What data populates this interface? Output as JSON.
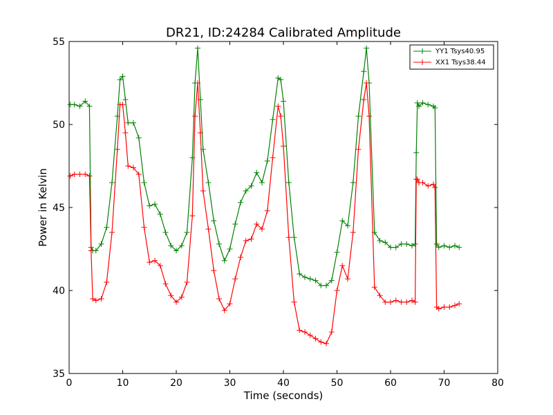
{
  "chart_data": {
    "type": "line",
    "title": "DR21, ID:24284 Calibrated Amplitude",
    "xlabel": "Time (seconds)",
    "ylabel": "Power in Kelvin",
    "xlim": [
      0,
      80
    ],
    "ylim": [
      35,
      55
    ],
    "xticks": [
      0,
      10,
      20,
      30,
      40,
      50,
      60,
      70,
      80
    ],
    "yticks": [
      35,
      40,
      45,
      50,
      55
    ],
    "grid": false,
    "legend_position": "top-right",
    "series": [
      {
        "name": "YY1 Tsys40.95",
        "color": "#008000",
        "marker": "+",
        "x": [
          0.2,
          1.0,
          2.0,
          3.0,
          3.8,
          4.1,
          4.4,
          5.0,
          6.0,
          7.0,
          8.0,
          9.0,
          9.5,
          10.0,
          10.5,
          11.0,
          12.0,
          13.0,
          14.0,
          15.0,
          16.0,
          17.0,
          18.0,
          19.0,
          20.0,
          21.0,
          22.0,
          23.0,
          23.5,
          24.0,
          24.5,
          25.0,
          26.0,
          27.0,
          28.0,
          29.0,
          30.0,
          31.0,
          32.0,
          33.0,
          34.0,
          35.0,
          36.0,
          37.0,
          38.0,
          39.0,
          39.5,
          40.0,
          41.0,
          42.0,
          43.0,
          44.0,
          45.0,
          46.0,
          47.0,
          48.0,
          49.0,
          50.0,
          51.0,
          52.0,
          53.0,
          54.0,
          55.0,
          55.5,
          56.0,
          57.0,
          58.0,
          59.0,
          60.0,
          61.0,
          62.0,
          63.0,
          64.0,
          64.6,
          64.8,
          65.0,
          65.3,
          66.0,
          67.0,
          68.0,
          68.3,
          68.6,
          69.0,
          70.0,
          71.0,
          72.0,
          72.8
        ],
        "y": [
          51.2,
          51.2,
          51.1,
          51.4,
          51.1,
          42.6,
          42.4,
          42.4,
          42.8,
          43.8,
          46.5,
          50.5,
          52.7,
          52.9,
          51.5,
          50.1,
          50.1,
          49.2,
          46.5,
          45.1,
          45.2,
          44.6,
          43.5,
          42.7,
          42.4,
          42.7,
          43.5,
          48.0,
          52.5,
          54.6,
          51.5,
          48.5,
          46.5,
          44.2,
          42.8,
          41.8,
          42.5,
          44.0,
          45.3,
          46.0,
          46.3,
          47.1,
          46.5,
          47.8,
          50.3,
          52.8,
          52.7,
          51.4,
          46.5,
          43.2,
          41.0,
          40.8,
          40.7,
          40.6,
          40.3,
          40.3,
          40.6,
          42.3,
          44.2,
          43.9,
          46.5,
          50.5,
          53.2,
          54.6,
          52.5,
          43.5,
          43.0,
          42.9,
          42.6,
          42.6,
          42.8,
          42.8,
          42.7,
          42.8,
          48.3,
          51.3,
          51.1,
          51.3,
          51.2,
          51.1,
          51.0,
          42.8,
          42.6,
          42.7,
          42.6,
          42.7,
          42.6
        ]
      },
      {
        "name": "XX1 Tsys38.44",
        "color": "#ff0000",
        "marker": "+",
        "x": [
          0.2,
          1.0,
          2.0,
          3.0,
          3.8,
          4.1,
          4.4,
          5.0,
          6.0,
          7.0,
          8.0,
          9.0,
          9.5,
          10.0,
          10.5,
          11.0,
          12.0,
          13.0,
          14.0,
          15.0,
          16.0,
          17.0,
          18.0,
          19.0,
          20.0,
          21.0,
          22.0,
          23.0,
          23.5,
          24.0,
          24.5,
          25.0,
          26.0,
          27.0,
          28.0,
          29.0,
          30.0,
          31.0,
          32.0,
          33.0,
          34.0,
          35.0,
          36.0,
          37.0,
          38.0,
          39.0,
          39.5,
          40.0,
          41.0,
          42.0,
          43.0,
          44.0,
          45.0,
          46.0,
          47.0,
          48.0,
          49.0,
          50.0,
          51.0,
          52.0,
          53.0,
          54.0,
          55.0,
          55.5,
          56.0,
          57.0,
          58.0,
          59.0,
          60.0,
          61.0,
          62.0,
          63.0,
          64.0,
          64.6,
          64.8,
          65.0,
          65.3,
          66.0,
          67.0,
          68.0,
          68.3,
          68.6,
          69.0,
          70.0,
          71.0,
          72.0,
          72.8
        ],
        "y": [
          46.9,
          47.0,
          47.0,
          47.0,
          46.9,
          42.4,
          39.5,
          39.4,
          39.5,
          40.5,
          43.5,
          48.5,
          51.2,
          51.2,
          49.5,
          47.5,
          47.4,
          47.0,
          43.8,
          41.7,
          41.8,
          41.5,
          40.4,
          39.7,
          39.3,
          39.6,
          40.5,
          44.5,
          50.5,
          52.5,
          49.5,
          46.0,
          43.7,
          41.2,
          39.5,
          38.8,
          39.2,
          40.7,
          42.0,
          43.0,
          43.1,
          44.0,
          43.7,
          44.8,
          48.0,
          51.1,
          50.5,
          48.7,
          43.2,
          39.3,
          37.6,
          37.5,
          37.3,
          37.1,
          36.9,
          36.8,
          37.5,
          40.0,
          41.5,
          40.7,
          43.5,
          48.5,
          51.5,
          52.5,
          50.5,
          40.2,
          39.7,
          39.3,
          39.3,
          39.4,
          39.3,
          39.3,
          39.4,
          39.3,
          46.7,
          46.7,
          46.5,
          46.5,
          46.3,
          46.4,
          46.2,
          39.0,
          38.9,
          39.0,
          39.0,
          39.1,
          39.2
        ]
      }
    ]
  }
}
